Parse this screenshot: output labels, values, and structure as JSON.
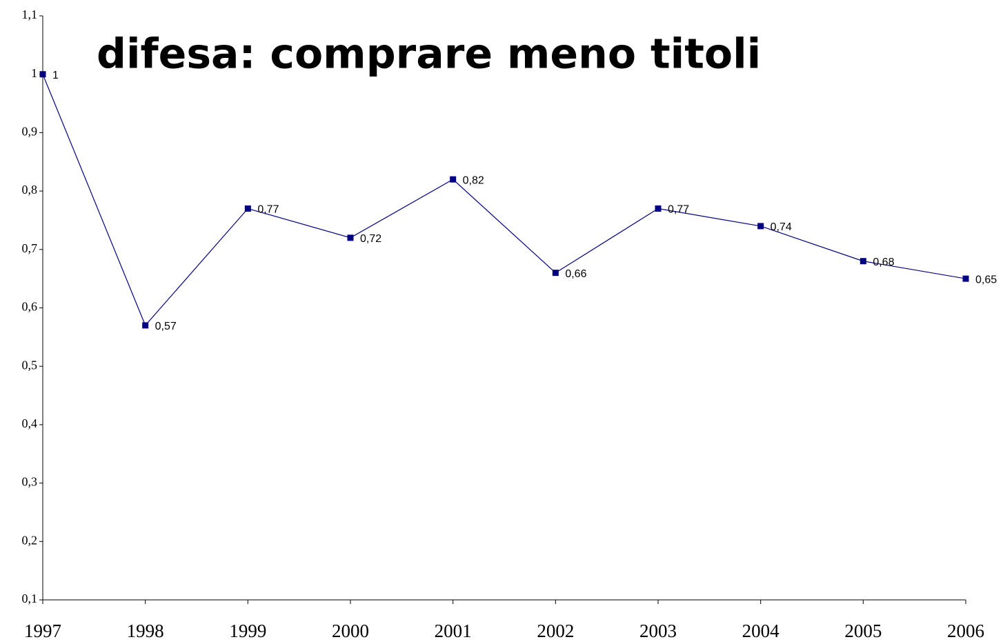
{
  "chart_data": {
    "type": "line",
    "title": "difesa: comprare meno titoli",
    "categories": [
      "1997",
      "1998",
      "1999",
      "2000",
      "2001",
      "2002",
      "2003",
      "2004",
      "2005",
      "2006"
    ],
    "series": [
      {
        "name": null,
        "color": "#000080",
        "values": [
          1,
          0.57,
          0.77,
          0.72,
          0.82,
          0.66,
          0.77,
          0.74,
          0.68,
          0.65
        ],
        "value_labels": [
          "1",
          "0,57",
          "0,77",
          "0,72",
          "0,82",
          "0,66",
          "0,77",
          "0,74",
          "0,68",
          "0,65"
        ]
      }
    ],
    "ylim": [
      0.1,
      1.1
    ],
    "yticks": [
      {
        "value": 0.1,
        "label": "0,1"
      },
      {
        "value": 0.2,
        "label": "0,2"
      },
      {
        "value": 0.3,
        "label": "0,3"
      },
      {
        "value": 0.4,
        "label": "0,4"
      },
      {
        "value": 0.5,
        "label": "0,5"
      },
      {
        "value": 0.6,
        "label": "0,6"
      },
      {
        "value": 0.7,
        "label": "0,7"
      },
      {
        "value": 0.8,
        "label": "0,8"
      },
      {
        "value": 0.9,
        "label": "0,9"
      },
      1,
      {
        "value": 1.1,
        "label": "1,1"
      }
    ],
    "grid": false
  }
}
